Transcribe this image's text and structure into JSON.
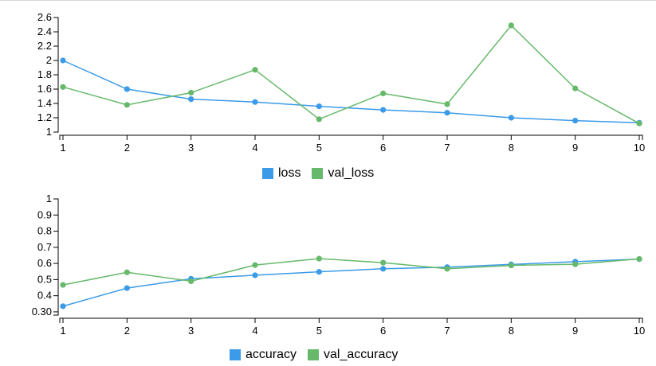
{
  "colors": {
    "blue": "#3b9be8",
    "green": "#66b96a"
  },
  "chart_data": [
    {
      "type": "line",
      "x": [
        1,
        2,
        3,
        4,
        5,
        6,
        7,
        8,
        9,
        10
      ],
      "xlim": [
        1,
        10
      ],
      "ylim": [
        1,
        2.6
      ],
      "yticks": [
        "1",
        "1.2",
        "1.4",
        "1.6",
        "1.8",
        "2",
        "2.2",
        "2.4",
        "2.6"
      ],
      "ytick_values": [
        1,
        1.2,
        1.4,
        1.6,
        1.8,
        2,
        2.2,
        2.4,
        2.6
      ],
      "series": [
        {
          "name": "loss",
          "color": "blue",
          "values": [
            2.0,
            1.6,
            1.46,
            1.42,
            1.36,
            1.31,
            1.27,
            1.2,
            1.16,
            1.13
          ]
        },
        {
          "name": "val_loss",
          "color": "green",
          "values": [
            1.63,
            1.38,
            1.55,
            1.87,
            1.18,
            1.54,
            1.39,
            2.49,
            1.61,
            1.12
          ]
        }
      ],
      "legend": "bottom"
    },
    {
      "type": "line",
      "x": [
        1,
        2,
        3,
        4,
        5,
        6,
        7,
        8,
        9,
        10
      ],
      "xlim": [
        1,
        10
      ],
      "ylim": [
        0.28,
        1.0
      ],
      "yticks": [
        "0.30",
        "0.4",
        "0.5",
        "0.6",
        "0.7",
        "0.8",
        "0.9",
        "1"
      ],
      "ytick_values": [
        0.3,
        0.4,
        0.5,
        0.6,
        0.7,
        0.8,
        0.9,
        1.0
      ],
      "series": [
        {
          "name": "accuracy",
          "color": "blue",
          "values": [
            0.335,
            0.447,
            0.505,
            0.527,
            0.548,
            0.567,
            0.577,
            0.594,
            0.611,
            0.627
          ]
        },
        {
          "name": "val_accuracy",
          "color": "green",
          "values": [
            0.467,
            0.545,
            0.49,
            0.59,
            0.63,
            0.605,
            0.567,
            0.588,
            0.595,
            0.628
          ]
        }
      ],
      "legend": "bottom"
    }
  ]
}
